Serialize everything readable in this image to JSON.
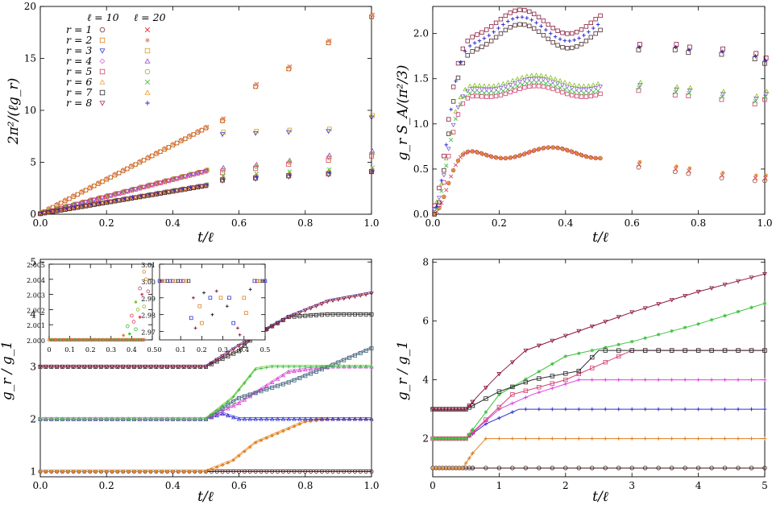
{
  "chart_data": [
    {
      "type": "scatter",
      "title": "",
      "xlabel": "t/ℓ",
      "ylabel": "2π²/(ℓg_r)",
      "xlim": [
        0,
        1
      ],
      "ylim": [
        0,
        20
      ],
      "xticks": [
        "0.0",
        "0.2",
        "0.4",
        "0.6",
        "0.8",
        "1.0"
      ],
      "yticks": [
        "0",
        "5",
        "10",
        "15",
        "20"
      ],
      "legend": {
        "header_l10": "ℓ = 10",
        "header_l20": "ℓ = 20",
        "labels": [
          "r = 1",
          "r = 2",
          "r = 3",
          "r = 4",
          "r = 5",
          "r = 6",
          "r = 7",
          "r = 8"
        ]
      },
      "series": [
        {
          "r": 1,
          "color_l10": "#7a3030",
          "color_l20": "#dd2222",
          "slope": 16.5,
          "after_t05": [
            [
              0.55,
              9.0
            ],
            [
              0.65,
              12.3
            ],
            [
              0.75,
              14.0
            ],
            [
              0.87,
              16.5
            ],
            [
              1.0,
              19.0
            ]
          ]
        },
        {
          "r": 2,
          "color_l10": "#e08020",
          "color_l20": "#e08a60",
          "slope": 16.5,
          "after_t05": [
            [
              0.55,
              9.0
            ],
            [
              0.65,
              12.3
            ],
            [
              0.75,
              14.0
            ],
            [
              0.87,
              16.5
            ],
            [
              1.0,
              19.0
            ]
          ]
        },
        {
          "r": 3,
          "color_l10": "#3030d0",
          "color_l20": "#d0a020",
          "slope": 8.2,
          "after_t05": [
            [
              0.55,
              7.7
            ],
            [
              0.65,
              7.8
            ],
            [
              0.75,
              7.9
            ],
            [
              0.87,
              8.0
            ],
            [
              1.0,
              9.3
            ]
          ]
        },
        {
          "r": 4,
          "color_l10": "#e060e0",
          "color_l20": "#9a40c0",
          "slope": 8.2,
          "after_t05": [
            [
              0.55,
              4.3
            ],
            [
              0.65,
              4.6
            ],
            [
              0.75,
              5.0
            ],
            [
              0.87,
              5.5
            ],
            [
              1.0,
              5.9
            ]
          ]
        },
        {
          "r": 5,
          "color_l10": "#e04060",
          "color_l20": "#80c020",
          "slope": 8.2,
          "after_t05": [
            [
              0.55,
              4.0
            ],
            [
              0.65,
              4.4
            ],
            [
              0.75,
              4.8
            ],
            [
              0.87,
              5.2
            ],
            [
              1.0,
              5.6
            ]
          ]
        },
        {
          "r": 6,
          "color_l10": "#f0a040",
          "color_l20": "#40c040",
          "slope": 5.4,
          "after_t05": [
            [
              0.55,
              3.5
            ],
            [
              0.65,
              3.7
            ],
            [
              0.75,
              3.9
            ],
            [
              0.87,
              4.1
            ],
            [
              1.0,
              4.3
            ]
          ]
        },
        {
          "r": 7,
          "color_l10": "#2a2a2a",
          "color_l20": "#f09020",
          "slope": 5.4,
          "after_t05": [
            [
              0.55,
              3.3
            ],
            [
              0.65,
              3.5
            ],
            [
              0.75,
              3.7
            ],
            [
              0.87,
              3.9
            ],
            [
              1.0,
              4.1
            ]
          ]
        },
        {
          "r": 8,
          "color_l10": "#a03040",
          "color_l20": "#3030d0",
          "slope": 5.4,
          "after_t05": [
            [
              0.55,
              3.2
            ],
            [
              0.65,
              3.4
            ],
            [
              0.75,
              3.6
            ],
            [
              0.87,
              3.8
            ],
            [
              1.0,
              4.0
            ]
          ]
        }
      ]
    },
    {
      "type": "scatter",
      "xlabel": "t/ℓ",
      "ylabel": "g_r S_A/(π²/3)",
      "xlim": [
        0,
        1
      ],
      "ylim": [
        0,
        2.3
      ],
      "xticks": [
        "0.0",
        "0.2",
        "0.4",
        "0.6",
        "0.8",
        "1.0"
      ],
      "yticks": [
        "0.0",
        "0.5",
        "1.0",
        "1.5",
        "2.0"
      ],
      "series": [
        {
          "group": "r=1,2",
          "plateau": 0.68,
          "after_t05": [
            [
              0.62,
              0.55
            ],
            [
              0.73,
              0.5
            ],
            [
              0.77,
              0.48
            ],
            [
              0.87,
              0.43
            ],
            [
              0.97,
              0.4
            ],
            [
              1.0,
              0.4
            ]
          ]
        },
        {
          "group": "r=3,4,5",
          "plateau": 1.4,
          "after_t05": [
            [
              0.62,
              1.4
            ],
            [
              0.73,
              1.35
            ],
            [
              0.77,
              1.34
            ],
            [
              0.87,
              1.3
            ],
            [
              0.97,
              1.25
            ],
            [
              1.0,
              1.3
            ]
          ]
        },
        {
          "group": "r=6,7,8",
          "plateau": 2.05,
          "after_t05": [
            [
              0.62,
              1.85
            ],
            [
              0.73,
              1.85
            ],
            [
              0.77,
              1.82
            ],
            [
              0.87,
              1.8
            ],
            [
              0.97,
              1.75
            ],
            [
              1.0,
              1.7
            ]
          ]
        }
      ]
    },
    {
      "type": "line",
      "xlabel": "t/ℓ",
      "ylabel": "g_r / g_1",
      "xlim": [
        0,
        1
      ],
      "ylim": [
        0.9,
        5.05
      ],
      "xticks": [
        "0.0",
        "0.2",
        "0.4",
        "0.6",
        "0.8",
        "1.0"
      ],
      "yticks": [
        "1",
        "2",
        "3",
        "4",
        "5"
      ],
      "series": [
        {
          "name": "r=1",
          "points": [
            [
              0,
              1
            ],
            [
              1,
              1
            ]
          ]
        },
        {
          "name": "r=2",
          "points": [
            [
              0,
              1
            ],
            [
              0.5,
              1
            ],
            [
              0.58,
              1.2
            ],
            [
              0.65,
              1.55
            ],
            [
              0.8,
              1.95
            ],
            [
              0.87,
              2.0
            ],
            [
              1.0,
              2.0
            ]
          ]
        },
        {
          "name": "r=3",
          "points": [
            [
              0,
              2
            ],
            [
              0.5,
              2
            ],
            [
              0.55,
              2.1
            ],
            [
              0.6,
              2.0
            ],
            [
              1.0,
              2.0
            ]
          ]
        },
        {
          "name": "r=4",
          "points": [
            [
              0,
              2
            ],
            [
              0.5,
              2
            ],
            [
              0.6,
              2.3
            ],
            [
              0.75,
              2.9
            ],
            [
              0.87,
              3.0
            ],
            [
              1.0,
              3.0
            ]
          ]
        },
        {
          "name": "r=5",
          "points": [
            [
              0,
              2
            ],
            [
              0.5,
              2
            ],
            [
              0.6,
              2.4
            ],
            [
              0.75,
              2.7
            ],
            [
              0.87,
              3.0
            ],
            [
              1.0,
              3.35
            ]
          ]
        },
        {
          "name": "r=6",
          "points": [
            [
              0,
              2
            ],
            [
              0.5,
              2
            ],
            [
              0.58,
              2.4
            ],
            [
              0.65,
              2.95
            ],
            [
              0.7,
              3.0
            ],
            [
              1.0,
              3.0
            ]
          ]
        },
        {
          "name": "r=7",
          "points": [
            [
              0,
              3
            ],
            [
              0.5,
              3
            ],
            [
              0.6,
              3.3
            ],
            [
              0.65,
              3.6
            ],
            [
              0.75,
              3.95
            ],
            [
              0.87,
              4.0
            ],
            [
              1.0,
              4.0
            ]
          ]
        },
        {
          "name": "r=8",
          "points": [
            [
              0,
              3
            ],
            [
              0.5,
              3
            ],
            [
              0.6,
              3.4
            ],
            [
              0.75,
              3.95
            ],
            [
              0.87,
              4.25
            ],
            [
              1.0,
              4.4
            ]
          ]
        }
      ],
      "insets": [
        {
          "xlim": [
            0,
            0.5
          ],
          "ylim": [
            2.0,
            2.005
          ],
          "xticks": [
            "0",
            "0.1",
            "0.2",
            "0.3",
            "0.4",
            "0.5"
          ],
          "yticks": [
            "2.000",
            "2.001",
            "2.002",
            "2.003",
            "2.004",
            "2.005"
          ]
        },
        {
          "xlim": [
            0,
            0.5
          ],
          "ylim": [
            2.965,
            3.01
          ],
          "xticks": [
            "0",
            "0.1",
            "0.2",
            "0.3",
            "0.4",
            "0.5"
          ],
          "yticks": [
            "2.97",
            "2.98",
            "2.99",
            "3.00",
            "3.01"
          ]
        }
      ]
    },
    {
      "type": "line",
      "xlabel": "t/ℓ",
      "ylabel": "g_r / g_1",
      "xlim": [
        0,
        5
      ],
      "ylim": [
        0.7,
        8.1
      ],
      "xticks": [
        "0",
        "1",
        "2",
        "3",
        "4",
        "5"
      ],
      "yticks": [
        "2",
        "4",
        "6",
        "8"
      ],
      "series": [
        {
          "name": "r=1",
          "points": [
            [
              0,
              1
            ],
            [
              5,
              1
            ]
          ]
        },
        {
          "name": "r=2",
          "points": [
            [
              0,
              1
            ],
            [
              0.45,
              1
            ],
            [
              0.6,
              1.5
            ],
            [
              0.8,
              2.0
            ],
            [
              5,
              2.0
            ]
          ]
        },
        {
          "name": "r=3",
          "points": [
            [
              0,
              2
            ],
            [
              0.5,
              2
            ],
            [
              0.8,
              2.5
            ],
            [
              1.3,
              3.0
            ],
            [
              5,
              3.0
            ]
          ]
        },
        {
          "name": "r=4",
          "points": [
            [
              0,
              2
            ],
            [
              0.5,
              2
            ],
            [
              1.0,
              3.0
            ],
            [
              1.5,
              3.5
            ],
            [
              2.2,
              4.0
            ],
            [
              5,
              4.0
            ]
          ]
        },
        {
          "name": "r=5",
          "points": [
            [
              0,
              2
            ],
            [
              0.5,
              2
            ],
            [
              1.2,
              3.5
            ],
            [
              2.0,
              4.0
            ],
            [
              3.0,
              5.0
            ],
            [
              5,
              5.0
            ]
          ]
        },
        {
          "name": "r=6",
          "points": [
            [
              0,
              2
            ],
            [
              0.5,
              2
            ],
            [
              1.0,
              3.5
            ],
            [
              2.0,
              4.8
            ],
            [
              3.0,
              5.3
            ],
            [
              4.0,
              5.9
            ],
            [
              5,
              6.6
            ]
          ]
        },
        {
          "name": "r=7",
          "points": [
            [
              0,
              3
            ],
            [
              0.5,
              3
            ],
            [
              1.0,
              3.6
            ],
            [
              1.5,
              4.0
            ],
            [
              2.2,
              4.3
            ],
            [
              2.5,
              5.0
            ],
            [
              5,
              5.0
            ]
          ]
        },
        {
          "name": "r=8",
          "points": [
            [
              0,
              3
            ],
            [
              0.5,
              3
            ],
            [
              0.7,
              3.5
            ],
            [
              1.0,
              4.2
            ],
            [
              1.4,
              5.0
            ],
            [
              2.0,
              5.5
            ],
            [
              3.0,
              6.3
            ],
            [
              4.0,
              7.0
            ],
            [
              5,
              7.6
            ]
          ]
        }
      ]
    }
  ]
}
